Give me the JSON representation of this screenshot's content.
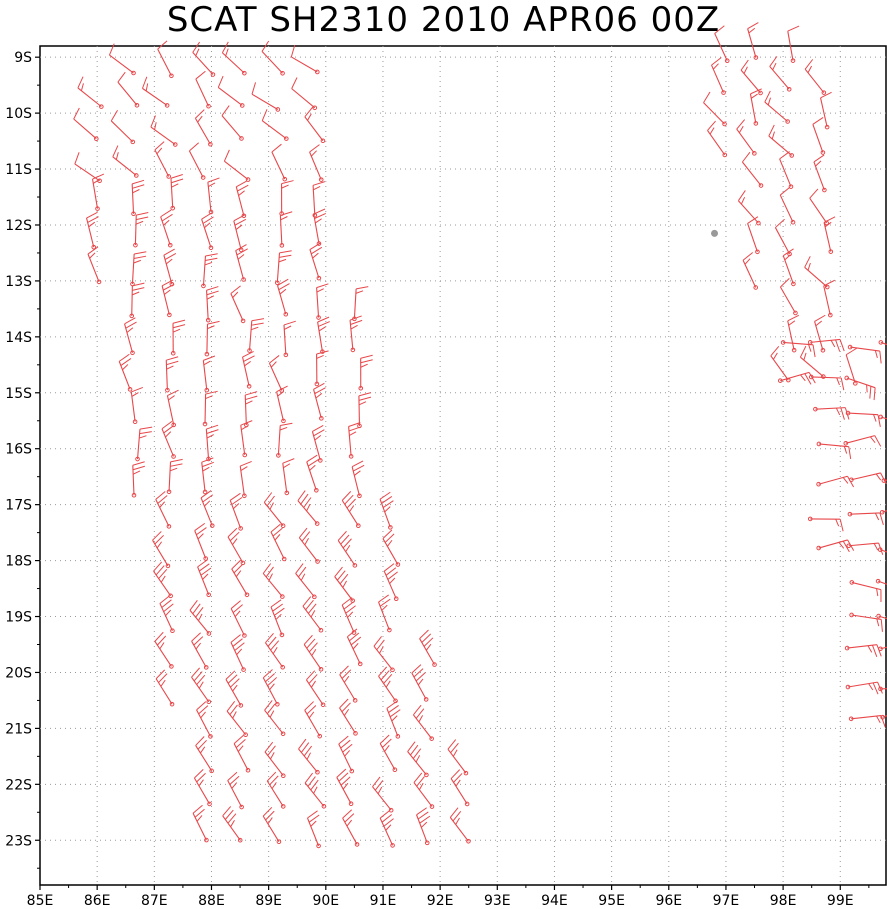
{
  "title": "SCAT SH2310 2010 APR06 00Z",
  "lon_labels": [
    "85E",
    "86E",
    "87E",
    "88E",
    "89E",
    "90E",
    "91E",
    "92E",
    "93E",
    "94E",
    "95E",
    "96E",
    "97E",
    "98E",
    "99E"
  ],
  "lat_labels": [
    "9S",
    "10S",
    "11S",
    "12S",
    "13S",
    "14S",
    "15S",
    "16S",
    "17S",
    "18S",
    "19S",
    "20S",
    "21S",
    "22S",
    "23S"
  ],
  "lon_range": [
    85,
    99.8
  ],
  "lat_range": [
    -8.8,
    -23.8
  ],
  "colors": {
    "barb": "#e8474a",
    "grid": "#9a9a9a",
    "frame": "#000000",
    "storm_center": "#999999"
  },
  "storm_center": {
    "lon": 96.8,
    "lat": -12.15
  }
}
